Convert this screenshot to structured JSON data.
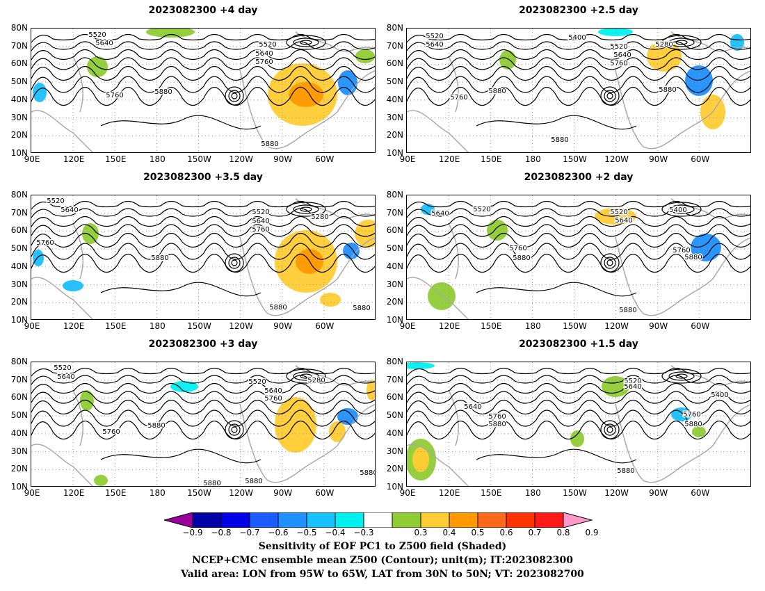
{
  "panels": [
    {
      "title": "2023082300  +4 day",
      "labels": [
        [
          "5520",
          95,
          8
        ],
        [
          "5640",
          105,
          20
        ],
        [
          "5520",
          340,
          22
        ],
        [
          "5640",
          335,
          35
        ],
        [
          "5760",
          335,
          47
        ],
        [
          "5760",
          120,
          95
        ],
        [
          "5880",
          190,
          90
        ],
        [
          "5880",
          343,
          165
        ]
      ]
    },
    {
      "title": "2023082300  +2.5 day",
      "labels": [
        [
          "5520",
          40,
          10
        ],
        [
          "5640",
          40,
          22
        ],
        [
          "5400",
          245,
          12
        ],
        [
          "5280",
          370,
          22
        ],
        [
          "5520",
          305,
          25
        ],
        [
          "5640",
          310,
          37
        ],
        [
          "5760",
          305,
          49
        ],
        [
          "5880",
          375,
          87
        ],
        [
          "5760",
          75,
          98
        ],
        [
          "5880",
          130,
          89
        ],
        [
          "5880",
          220,
          159
        ]
      ]
    },
    {
      "title": "2023082300  +3.5 day",
      "labels": [
        [
          "5520",
          35,
          7
        ],
        [
          "5640",
          55,
          20
        ],
        [
          "5520",
          330,
          23
        ],
        [
          "5640",
          330,
          36
        ],
        [
          "5760",
          330,
          48
        ],
        [
          "5280",
          415,
          30
        ],
        [
          "5760",
          20,
          67
        ],
        [
          "5880",
          185,
          89
        ],
        [
          "5880",
          355,
          160
        ],
        [
          "5880",
          475,
          161
        ]
      ]
    },
    {
      "title": "2023082300  +2 day",
      "labels": [
        [
          "5520",
          108,
          19
        ],
        [
          "5640",
          48,
          25
        ],
        [
          "5400",
          390,
          20
        ],
        [
          "5520",
          305,
          23
        ],
        [
          "5640",
          312,
          35
        ],
        [
          "5760",
          160,
          75
        ],
        [
          "5880",
          165,
          89
        ],
        [
          "5760",
          395,
          78
        ],
        [
          "5880",
          412,
          88
        ],
        [
          "5880",
          318,
          164
        ]
      ]
    },
    {
      "title": "2023082300  +3 day",
      "labels": [
        [
          "5520",
          45,
          7
        ],
        [
          "5640",
          50,
          20
        ],
        [
          "5520",
          325,
          27
        ],
        [
          "5640",
          348,
          40
        ],
        [
          "5760",
          348,
          51
        ],
        [
          "5280",
          410,
          25
        ],
        [
          "5880",
          180,
          90
        ],
        [
          "5760",
          115,
          99
        ],
        [
          "5880",
          260,
          173
        ],
        [
          "5880",
          320,
          170
        ],
        [
          "5880",
          485,
          158
        ]
      ]
    },
    {
      "title": "2023082300  +1.5 day",
      "labels": [
        [
          "5520",
          325,
          26
        ],
        [
          "5640",
          325,
          34
        ],
        [
          "5400",
          450,
          46
        ],
        [
          "5640",
          95,
          63
        ],
        [
          "5760",
          130,
          77
        ],
        [
          "5880",
          130,
          88
        ],
        [
          "5760",
          410,
          74
        ],
        [
          "5880",
          412,
          88
        ],
        [
          "5880",
          315,
          155
        ]
      ]
    }
  ],
  "lat_ticks": [
    "80N",
    "70N",
    "60N",
    "50N",
    "40N",
    "30N",
    "20N",
    "10N"
  ],
  "lon_ticks": [
    "90E",
    "120E",
    "150E",
    "180",
    "150W",
    "120W",
    "90W",
    "60W"
  ],
  "colorbar": {
    "labels": [
      "−0.9",
      "−0.8",
      "−0.7",
      "−0.6",
      "−0.5",
      "−0.4",
      "−0.3",
      "0.3",
      "0.4",
      "0.5",
      "0.6",
      "0.7",
      "0.8",
      "0.9"
    ],
    "colors": [
      "#9c009c",
      "#0000a6",
      "#0000e6",
      "#1a5cff",
      "#1e90ff",
      "#18c0ff",
      "#00f0f0",
      "#ffffff",
      "#8fcc33",
      "#ffcc33",
      "#ff9900",
      "#ff6a1a",
      "#ff3300",
      "#ff1a1a",
      "#ff99cc"
    ]
  },
  "captions": [
    "Sensitivity of EOF PC1 to Z500 field (Shaded)",
    "NCEP+CMC ensemble mean Z500 (Contour); unit(m); IT:2023082300",
    "Valid area: LON from 95W to 65W, LAT from 30N to 50N; VT: 2023082700"
  ]
}
